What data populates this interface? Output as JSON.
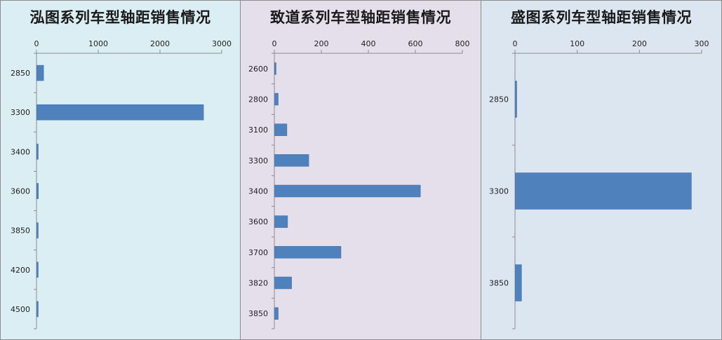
{
  "colors": {
    "bar": "#4f81bd",
    "axis": "#8c8c8c"
  },
  "chart_data": [
    {
      "type": "bar",
      "orientation": "horizontal",
      "title": "泓图系列车型轴距销售情况",
      "background": "#dbeef3",
      "xlim": [
        0,
        3000
      ],
      "xticks": [
        0,
        1000,
        2000,
        3000
      ],
      "categories": [
        "2850",
        "3300",
        "3400",
        "3600",
        "3850",
        "4200",
        "4500"
      ],
      "values": [
        110,
        2700,
        15,
        25,
        15,
        10,
        15
      ]
    },
    {
      "type": "bar",
      "orientation": "horizontal",
      "title": "致道系列车型轴距销售情况",
      "background": "#e5dfec",
      "xlim": [
        0,
        800
      ],
      "xticks": [
        0,
        200,
        400,
        600,
        800
      ],
      "categories": [
        "2600",
        "2800",
        "3100",
        "3300",
        "3400",
        "3600",
        "3700",
        "3820",
        "3850"
      ],
      "values": [
        3,
        15,
        52,
        145,
        620,
        55,
        282,
        72,
        15
      ]
    },
    {
      "type": "bar",
      "orientation": "horizontal",
      "title": "盛图系列车型轴距销售情况",
      "background": "#dce6f1",
      "xlim": [
        0,
        300
      ],
      "xticks": [
        0,
        100,
        200,
        300
      ],
      "categories": [
        "2850",
        "3300",
        "3850"
      ],
      "values": [
        2,
        283,
        10
      ]
    }
  ]
}
